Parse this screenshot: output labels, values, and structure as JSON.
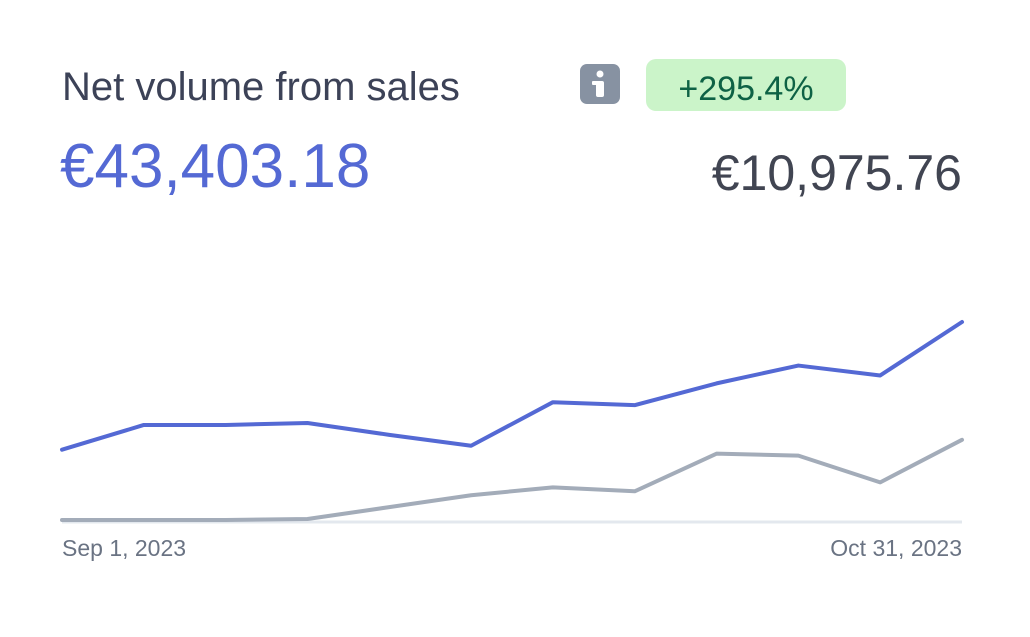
{
  "chart_data": {
    "type": "line",
    "title": "Net volume from sales",
    "badge": "+295.4%",
    "current_total": "€43,403.18",
    "previous_total": "€10,975.76",
    "categories": [
      "Sep 1, 2023",
      null,
      null,
      null,
      null,
      null,
      null,
      null,
      null,
      null,
      null,
      "Oct 31, 2023"
    ],
    "series": [
      {
        "color": "#5469d4",
        "values": [
          71,
          96,
          96,
          98,
          86,
          75,
          119,
          116,
          138,
          156,
          146,
          200
        ]
      },
      {
        "color": "#a3acb9",
        "values": [
          0,
          0,
          0,
          1,
          13,
          25,
          33,
          29,
          67,
          65,
          38,
          81
        ]
      }
    ]
  }
}
